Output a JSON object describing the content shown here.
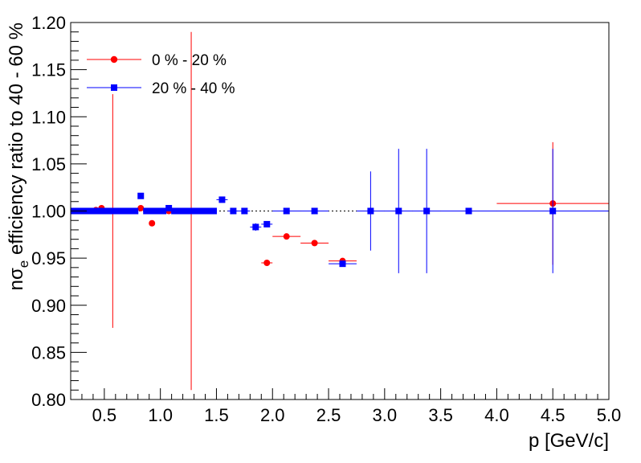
{
  "chart_data": {
    "type": "scatter",
    "title": "",
    "xlabel": "p [GeV/c]",
    "ylabel_main": "nσ",
    "ylabel_sub": "e",
    "ylabel_rest": " efficiency ratio to 40 - 60 %",
    "xlim": [
      0.2,
      5.0
    ],
    "ylim": [
      0.8,
      1.2
    ],
    "x_ticks": [
      "0.5",
      "1.0",
      "1.5",
      "2.0",
      "2.5",
      "3.0",
      "3.5",
      "4.0",
      "4.5",
      "5.0"
    ],
    "y_ticks": [
      "0.80",
      "0.85",
      "0.90",
      "0.95",
      "1.00",
      "1.05",
      "1.10",
      "1.15",
      "1.20"
    ],
    "grid": false,
    "legend_position": "top-left",
    "reference_line": {
      "y": 1.0,
      "style": "dotted"
    },
    "series": [
      {
        "name": "0 % - 20 %",
        "color": "#ff0000",
        "marker": "circle",
        "points": [
          {
            "x": 0.225,
            "y": 1.0,
            "ex": 0.025,
            "ey": 0.0
          },
          {
            "x": 0.275,
            "y": 1.0,
            "ex": 0.025,
            "ey": 0.0
          },
          {
            "x": 0.325,
            "y": 1.0,
            "ex": 0.025,
            "ey": 0.0
          },
          {
            "x": 0.375,
            "y": 1.0,
            "ex": 0.025,
            "ey": 0.0
          },
          {
            "x": 0.425,
            "y": 1.001,
            "ex": 0.025,
            "ey": 0.0
          },
          {
            "x": 0.475,
            "y": 1.003,
            "ex": 0.025,
            "ey": 0.0
          },
          {
            "x": 0.525,
            "y": 1.0,
            "ex": 0.025,
            "ey": 0.0
          },
          {
            "x": 0.575,
            "y": 1.0,
            "ex": 0.025,
            "ey": 0.124
          },
          {
            "x": 0.625,
            "y": 1.0,
            "ex": 0.025,
            "ey": 0.0
          },
          {
            "x": 0.675,
            "y": 1.0,
            "ex": 0.025,
            "ey": 0.0
          },
          {
            "x": 0.725,
            "y": 1.0,
            "ex": 0.025,
            "ey": 0.0
          },
          {
            "x": 0.775,
            "y": 1.0,
            "ex": 0.025,
            "ey": 0.0
          },
          {
            "x": 0.825,
            "y": 1.003,
            "ex": 0.025,
            "ey": 0.0
          },
          {
            "x": 0.875,
            "y": 1.0,
            "ex": 0.025,
            "ey": 0.0
          },
          {
            "x": 0.925,
            "y": 0.987,
            "ex": 0.025,
            "ey": 0.0
          },
          {
            "x": 0.975,
            "y": 1.0,
            "ex": 0.025,
            "ey": 0.0
          },
          {
            "x": 1.025,
            "y": 1.0,
            "ex": 0.025,
            "ey": 0.0
          },
          {
            "x": 1.075,
            "y": 1.0,
            "ex": 0.025,
            "ey": 0.0
          },
          {
            "x": 1.125,
            "y": 1.0,
            "ex": 0.025,
            "ey": 0.0
          },
          {
            "x": 1.175,
            "y": 1.0,
            "ex": 0.025,
            "ey": 0.0
          },
          {
            "x": 1.225,
            "y": 1.0,
            "ex": 0.025,
            "ey": 0.0
          },
          {
            "x": 1.275,
            "y": 1.0,
            "ex": 0.025,
            "ey": 0.19
          },
          {
            "x": 1.325,
            "y": 1.0,
            "ex": 0.025,
            "ey": 0.0
          },
          {
            "x": 1.375,
            "y": 1.0,
            "ex": 0.025,
            "ey": 0.0
          },
          {
            "x": 1.425,
            "y": 1.0,
            "ex": 0.025,
            "ey": 0.0
          },
          {
            "x": 1.475,
            "y": 1.0,
            "ex": 0.025,
            "ey": 0.0
          },
          {
            "x": 1.95,
            "y": 0.945,
            "ex": 0.05,
            "ey": 0.0
          },
          {
            "x": 2.125,
            "y": 0.973,
            "ex": 0.125,
            "ey": 0.0
          },
          {
            "x": 2.375,
            "y": 0.966,
            "ex": 0.125,
            "ey": 0.0
          },
          {
            "x": 2.625,
            "y": 0.947,
            "ex": 0.125,
            "ey": 0.0
          },
          {
            "x": 4.5,
            "y": 1.008,
            "ex": 0.5,
            "ey": 0.065
          }
        ]
      },
      {
        "name": "20 % - 40 %",
        "color": "#0000ff",
        "marker": "square",
        "points": [
          {
            "x": 0.225,
            "y": 1.0,
            "ex": 0.025,
            "ey": 0.0
          },
          {
            "x": 0.275,
            "y": 1.0,
            "ex": 0.025,
            "ey": 0.0
          },
          {
            "x": 0.325,
            "y": 1.0,
            "ex": 0.025,
            "ey": 0.0
          },
          {
            "x": 0.375,
            "y": 1.0,
            "ex": 0.025,
            "ey": 0.0
          },
          {
            "x": 0.425,
            "y": 1.0,
            "ex": 0.025,
            "ey": 0.0
          },
          {
            "x": 0.475,
            "y": 1.0,
            "ex": 0.025,
            "ey": 0.0
          },
          {
            "x": 0.525,
            "y": 1.0,
            "ex": 0.025,
            "ey": 0.0
          },
          {
            "x": 0.575,
            "y": 1.0,
            "ex": 0.025,
            "ey": 0.0
          },
          {
            "x": 0.625,
            "y": 1.0,
            "ex": 0.025,
            "ey": 0.0
          },
          {
            "x": 0.675,
            "y": 1.0,
            "ex": 0.025,
            "ey": 0.0
          },
          {
            "x": 0.725,
            "y": 1.0,
            "ex": 0.025,
            "ey": 0.0
          },
          {
            "x": 0.775,
            "y": 1.0,
            "ex": 0.025,
            "ey": 0.0
          },
          {
            "x": 0.825,
            "y": 1.016,
            "ex": 0.025,
            "ey": 0.0
          },
          {
            "x": 0.875,
            "y": 1.0,
            "ex": 0.025,
            "ey": 0.0
          },
          {
            "x": 0.925,
            "y": 1.0,
            "ex": 0.025,
            "ey": 0.0
          },
          {
            "x": 0.975,
            "y": 1.0,
            "ex": 0.025,
            "ey": 0.0
          },
          {
            "x": 1.025,
            "y": 1.0,
            "ex": 0.025,
            "ey": 0.0
          },
          {
            "x": 1.075,
            "y": 1.003,
            "ex": 0.025,
            "ey": 0.0
          },
          {
            "x": 1.125,
            "y": 1.0,
            "ex": 0.025,
            "ey": 0.0
          },
          {
            "x": 1.175,
            "y": 1.0,
            "ex": 0.025,
            "ey": 0.0
          },
          {
            "x": 1.225,
            "y": 1.0,
            "ex": 0.025,
            "ey": 0.0
          },
          {
            "x": 1.275,
            "y": 1.0,
            "ex": 0.025,
            "ey": 0.0
          },
          {
            "x": 1.325,
            "y": 1.0,
            "ex": 0.025,
            "ey": 0.0
          },
          {
            "x": 1.375,
            "y": 1.0,
            "ex": 0.025,
            "ey": 0.0
          },
          {
            "x": 1.425,
            "y": 1.0,
            "ex": 0.025,
            "ey": 0.0
          },
          {
            "x": 1.475,
            "y": 1.0,
            "ex": 0.025,
            "ey": 0.0
          },
          {
            "x": 1.55,
            "y": 1.012,
            "ex": 0.05,
            "ey": 0.0
          },
          {
            "x": 1.65,
            "y": 1.0,
            "ex": 0.05,
            "ey": 0.0
          },
          {
            "x": 1.75,
            "y": 1.0,
            "ex": 0.05,
            "ey": 0.0
          },
          {
            "x": 1.85,
            "y": 0.983,
            "ex": 0.05,
            "ey": 0.004
          },
          {
            "x": 1.95,
            "y": 0.986,
            "ex": 0.05,
            "ey": 0.0
          },
          {
            "x": 2.125,
            "y": 1.0,
            "ex": 0.125,
            "ey": 0.0
          },
          {
            "x": 2.375,
            "y": 1.0,
            "ex": 0.125,
            "ey": 0.0
          },
          {
            "x": 2.625,
            "y": 0.944,
            "ex": 0.125,
            "ey": 0.0
          },
          {
            "x": 2.875,
            "y": 1.0,
            "ex": 0.125,
            "ey": 0.042
          },
          {
            "x": 3.125,
            "y": 1.0,
            "ex": 0.125,
            "ey": 0.066
          },
          {
            "x": 3.375,
            "y": 1.0,
            "ex": 0.125,
            "ey": 0.066
          },
          {
            "x": 3.75,
            "y": 1.0,
            "ex": 0.25,
            "ey": 0.0
          },
          {
            "x": 4.5,
            "y": 1.0,
            "ex": 0.5,
            "ey": 0.066
          }
        ]
      }
    ]
  }
}
